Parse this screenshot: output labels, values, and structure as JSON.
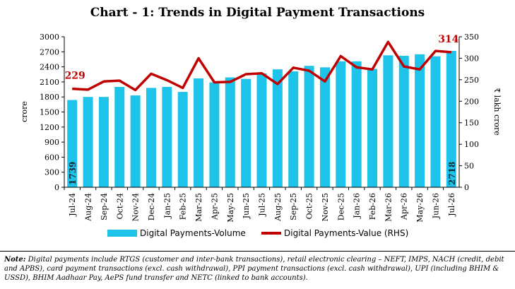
{
  "chart_data": {
    "type": "bar",
    "title": "Chart - 1: Trends in Digital Payment Transactions",
    "ylabel": "crore",
    "y2label": "₹ lakh crore",
    "ylim": [
      0,
      3000
    ],
    "y2lim": [
      0,
      350
    ],
    "yticks": [
      "0",
      "300",
      "600",
      "900",
      "1200",
      "1500",
      "1800",
      "2100",
      "2400",
      "2700",
      "3000"
    ],
    "y2ticks": [
      "0",
      "50",
      "100",
      "150",
      "200",
      "250",
      "300",
      "350"
    ],
    "categories": [
      "Jul-24",
      "Aug-24",
      "Sep-24",
      "Oct-24",
      "Nov-24",
      "Dec-24",
      "Jan-25",
      "Feb-25",
      "Mar-25",
      "Apr-25",
      "May-25",
      "Jun-25",
      "Jul-25",
      "Aug-25",
      "Sep-25",
      "Oct-25",
      "Nov-25",
      "Dec-25",
      "Jan-26",
      "Feb-26",
      "Mar-26",
      "Apr-26",
      "May-26",
      "Jun-26",
      "Jul-26"
    ],
    "series": [
      {
        "name": "Digital Payments-Volume",
        "type": "bar",
        "axis": "left",
        "color": "#1ec3ea",
        "values": [
          1739,
          1800,
          1800,
          2000,
          1830,
          1980,
          2000,
          1900,
          2170,
          2090,
          2190,
          2160,
          2270,
          2350,
          2310,
          2420,
          2390,
          2510,
          2510,
          2360,
          2630,
          2620,
          2650,
          2610,
          2718
        ]
      },
      {
        "name": "Digital Payments-Value (RHS)",
        "type": "line",
        "axis": "right",
        "color": "#c00000",
        "values": [
          229,
          227,
          246,
          248,
          226,
          264,
          249,
          231,
          300,
          244,
          245,
          263,
          265,
          240,
          278,
          271,
          246,
          305,
          279,
          274,
          338,
          281,
          274,
          317,
          314
        ]
      }
    ],
    "data_labels": {
      "first_bar": "1739",
      "last_bar": "2718",
      "first_point": "229",
      "last_point": "314"
    },
    "legend_position": "bottom"
  },
  "note": {
    "label": "Note:",
    "text": " Digital payments include RTGS (customer and inter-bank transactions), retail electronic clearing – NEFT, IMPS, NACH (credit, debit and APBS), card payment transactions (excl. cash withdrawal), PPI payment transactions (excl. cash withdrawal), UPI (including BHIM & USSD), BHIM Aadhaar Pay, AePS fund transfer and NETC (linked to bank accounts)."
  }
}
